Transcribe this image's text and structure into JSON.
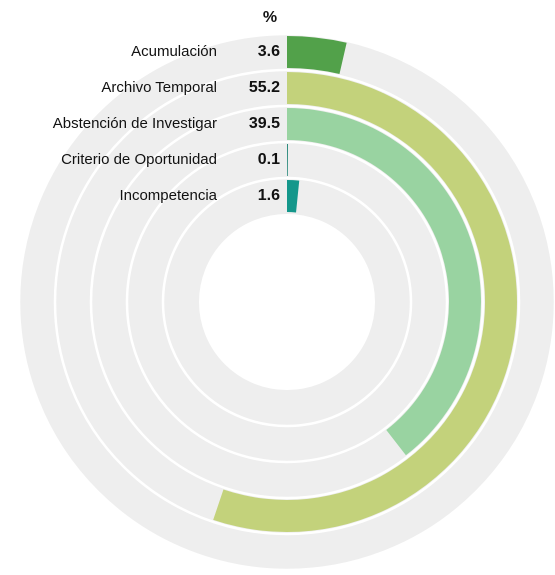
{
  "chart_data": {
    "type": "radial_bar",
    "title": "%",
    "categories": [
      "Acumulación",
      "Archivo Temporal",
      "Abstención de Investigar",
      "Criterio de Oportunidad",
      "Incompetencia"
    ],
    "values": [
      3.6,
      55.2,
      39.5,
      0.1,
      1.6
    ],
    "colors": [
      "#52a14a",
      "#c3d27b",
      "#99d3a1",
      "#2b8a7c",
      "#14978b"
    ],
    "ylim": [
      0,
      100
    ],
    "track_color": "#eeeeee"
  }
}
